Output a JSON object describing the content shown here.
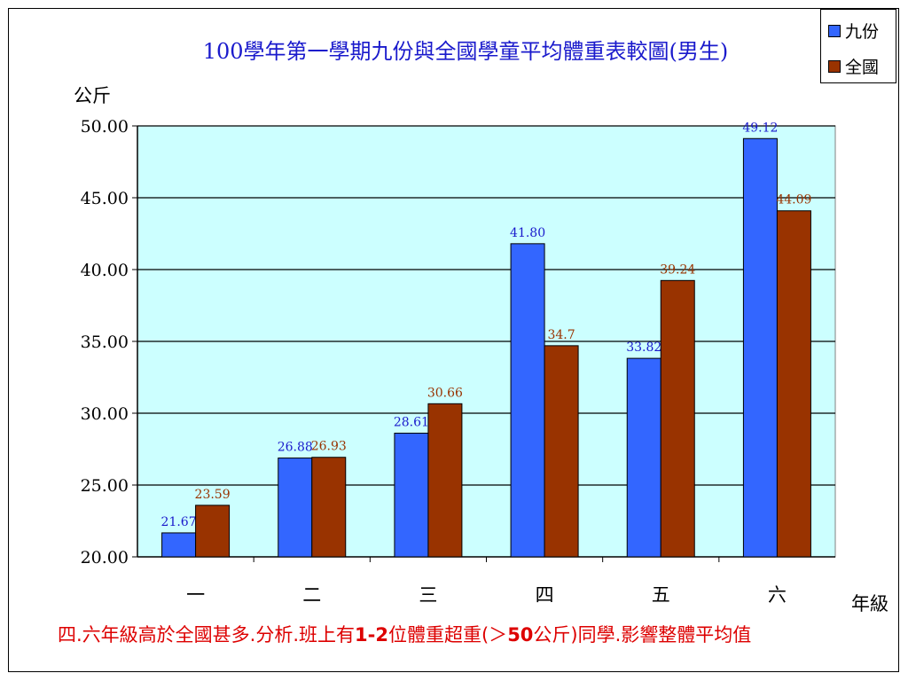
{
  "chart_data": {
    "type": "bar",
    "title": "100學年第一學期九份與全國學童平均體重表較圖(男生)",
    "ylabel": "公斤",
    "xlabel": "年級",
    "categories": [
      "一",
      "二",
      "三",
      "四",
      "五",
      "六"
    ],
    "ylim": [
      20,
      50
    ],
    "yticks": [
      "20.00",
      "25.00",
      "30.00",
      "35.00",
      "40.00",
      "45.00",
      "50.00"
    ],
    "grid": true,
    "legend_position": "top-right",
    "series": [
      {
        "name": "九份",
        "color": "#3366ff",
        "label_color": "#1a1acc",
        "values": [
          21.67,
          26.88,
          28.61,
          41.8,
          33.82,
          49.12
        ],
        "labels": [
          "21.67",
          "26.88",
          "28.61",
          "41.80",
          "33.82",
          "49.12"
        ]
      },
      {
        "name": "全國",
        "color": "#993300",
        "label_color": "#993300",
        "values": [
          23.59,
          26.93,
          30.66,
          34.7,
          39.24,
          44.09
        ],
        "labels": [
          "23.59",
          "26.93",
          "30.66",
          "34.7",
          "39.24",
          "44.09"
        ]
      }
    ],
    "plot_background": "#ccffff"
  },
  "note": {
    "text": "四.六年級高於全國甚多.分析.班上有1-2位體重超重(＞50公斤)同學.影響整體平均值"
  }
}
